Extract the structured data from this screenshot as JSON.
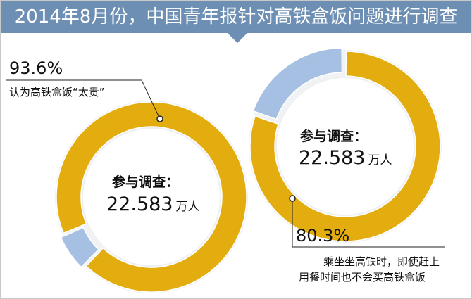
{
  "title": "2014年8月份，中国青年报针对高铁盒饭问题进行调查",
  "colors": {
    "header": "#6e8fb4",
    "gold": "#e3ad10",
    "blue": "#a6c0e3",
    "pale": "#eef0f2",
    "rim": "#f1f2f3"
  },
  "chart_data": [
    {
      "type": "pie",
      "donut": true,
      "center": {
        "title": "参与调查：",
        "value": "22.583",
        "unit": "万人"
      },
      "slices": [
        {
          "value": 93.6,
          "label": "93.6%",
          "description": "认为高铁盒饭“太贵”",
          "color": "#e3ad10"
        },
        {
          "value": 6.4,
          "label": "",
          "description": "",
          "color": "#a6c0e3"
        }
      ]
    },
    {
      "type": "pie",
      "donut": true,
      "center": {
        "title": "参与调查：",
        "value": "22.583",
        "unit": "万人"
      },
      "slices": [
        {
          "value": 80.3,
          "label": "80.3%",
          "description_lines": [
            "乘坐坐高铁时，即使赶上",
            "用餐时间也不会买高铁盒饭"
          ],
          "color": "#e3ad10"
        },
        {
          "value": 19.7,
          "label": "",
          "description": "",
          "color": "#a6c0e3"
        }
      ]
    }
  ]
}
